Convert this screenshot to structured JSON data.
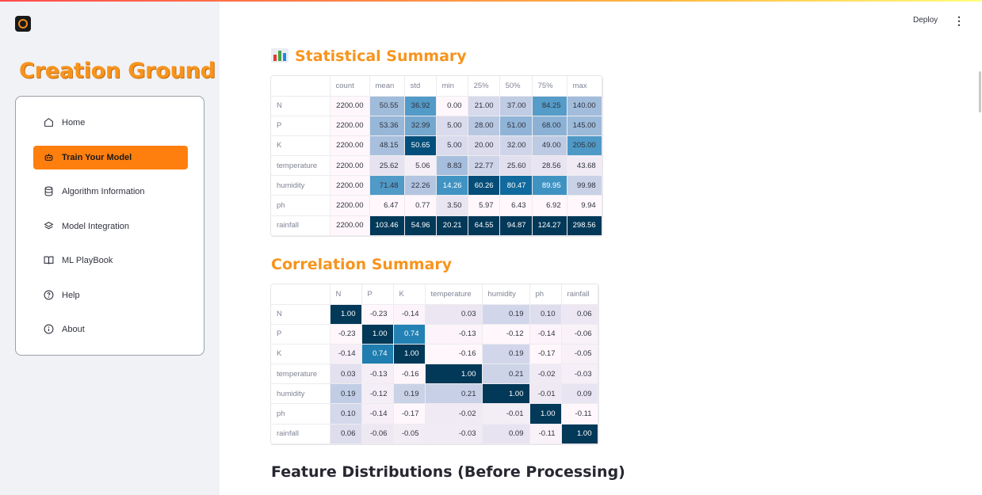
{
  "app": {
    "deploy_label": "Deploy",
    "menu_icon": "more-vertical-icon",
    "brand": "Creation Ground"
  },
  "sidebar": {
    "items": [
      {
        "label": "Home",
        "icon": "home-icon"
      },
      {
        "label": "Train Your Model",
        "icon": "robot-icon",
        "active": true
      },
      {
        "label": "Algorithm Information",
        "icon": "database-icon"
      },
      {
        "label": "Model Integration",
        "icon": "layers-icon"
      },
      {
        "label": "ML PlayBook",
        "icon": "book-open-icon"
      },
      {
        "label": "Help",
        "icon": "help-circle-icon"
      },
      {
        "label": "About",
        "icon": "info-icon"
      }
    ]
  },
  "main": {
    "stat_title": "Statistical Summary",
    "corr_title": "Correlation Summary",
    "dist_title": "Feature Distributions (Before Processing)"
  },
  "stat_table": {
    "columns": [
      "count",
      "mean",
      "std",
      "min",
      "25%",
      "50%",
      "75%",
      "max"
    ],
    "rows": [
      {
        "name": "N",
        "values": [
          "2200.00",
          "50.55",
          "36.92",
          "0.00",
          "21.00",
          "37.00",
          "84.25",
          "140.00"
        ]
      },
      {
        "name": "P",
        "values": [
          "2200.00",
          "53.36",
          "32.99",
          "5.00",
          "28.00",
          "51.00",
          "68.00",
          "145.00"
        ]
      },
      {
        "name": "K",
        "values": [
          "2200.00",
          "48.15",
          "50.65",
          "5.00",
          "20.00",
          "32.00",
          "49.00",
          "205.00"
        ]
      },
      {
        "name": "temperature",
        "values": [
          "2200.00",
          "25.62",
          "5.06",
          "8.83",
          "22.77",
          "25.60",
          "28.56",
          "43.68"
        ]
      },
      {
        "name": "humidity",
        "values": [
          "2200.00",
          "71.48",
          "22.26",
          "14.26",
          "60.26",
          "80.47",
          "89.95",
          "99.98"
        ]
      },
      {
        "name": "ph",
        "values": [
          "2200.00",
          "6.47",
          "0.77",
          "3.50",
          "5.97",
          "6.43",
          "6.92",
          "9.94"
        ]
      },
      {
        "name": "rainfall",
        "values": [
          "2200.00",
          "103.46",
          "54.96",
          "20.21",
          "64.55",
          "94.87",
          "124.27",
          "298.56"
        ]
      }
    ]
  },
  "corr_table": {
    "columns": [
      "N",
      "P",
      "K",
      "temperature",
      "humidity",
      "ph",
      "rainfall"
    ],
    "rows": [
      {
        "name": "N",
        "values": [
          "1.00",
          "-0.23",
          "-0.14",
          "0.03",
          "0.19",
          "0.10",
          "0.06"
        ]
      },
      {
        "name": "P",
        "values": [
          "-0.23",
          "1.00",
          "0.74",
          "-0.13",
          "-0.12",
          "-0.14",
          "-0.06"
        ]
      },
      {
        "name": "K",
        "values": [
          "-0.14",
          "0.74",
          "1.00",
          "-0.16",
          "0.19",
          "-0.17",
          "-0.05"
        ]
      },
      {
        "name": "temperature",
        "values": [
          "0.03",
          "-0.13",
          "-0.16",
          "1.00",
          "0.21",
          "-0.02",
          "-0.03"
        ]
      },
      {
        "name": "humidity",
        "values": [
          "0.19",
          "-0.12",
          "0.19",
          "0.21",
          "1.00",
          "-0.01",
          "0.09"
        ]
      },
      {
        "name": "ph",
        "values": [
          "0.10",
          "-0.14",
          "-0.17",
          "-0.02",
          "-0.01",
          "1.00",
          "-0.11"
        ]
      },
      {
        "name": "rainfall",
        "values": [
          "0.06",
          "-0.06",
          "-0.05",
          "-0.03",
          "0.09",
          "-0.11",
          "1.00"
        ]
      }
    ]
  },
  "colors": {
    "accent": "#f7941d",
    "active_menu": "#ff7f0e",
    "heat_low": "#fff7fb",
    "heat_high": "#023858"
  }
}
